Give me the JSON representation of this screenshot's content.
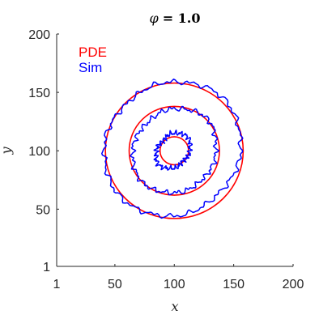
{
  "chart_data": {
    "type": "line",
    "title_symbol": "φ",
    "title_value": "= 1.0",
    "xlabel": "x",
    "ylabel": "y",
    "xlim": [
      1,
      200
    ],
    "ylim": [
      1,
      200
    ],
    "xticks": [
      1,
      50,
      100,
      150,
      200
    ],
    "yticks": [
      1,
      50,
      100,
      150,
      200
    ],
    "grid": false,
    "legend_position": "top-left",
    "center": [
      100,
      100
    ],
    "series": [
      {
        "name": "PDE",
        "color": "#ff0000",
        "curve": "circles",
        "radii": [
          12,
          38,
          58
        ]
      },
      {
        "name": "Sim",
        "color": "#0000ff",
        "curve": "noisy-circles",
        "rings": [
          {
            "radii": [
              14,
              17,
              15,
              12,
              14,
              17,
              15,
              12
            ],
            "offset": [
              -1,
              0
            ]
          },
          {
            "radii": [
              35,
              39,
              36,
              33,
              35,
              38,
              36,
              34
            ],
            "offset": [
              0,
              0
            ]
          },
          {
            "radii": [
              58,
              61,
              57,
              54,
              57,
              60,
              58,
              55
            ],
            "offset": [
              -2,
              2
            ]
          }
        ]
      }
    ]
  }
}
